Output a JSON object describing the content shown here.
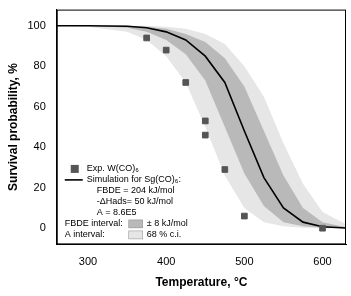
{
  "chart_data": {
    "type": "line",
    "x_label": "Temperature, °C",
    "y_label": "Survival probability, %",
    "xlim": [
      260,
      630
    ],
    "xticks": [
      300,
      400,
      500,
      600
    ],
    "ylim": [
      -8,
      108
    ],
    "yticks": [
      0,
      20,
      40,
      60,
      80,
      100
    ],
    "grid": false,
    "legend": "lower left",
    "annotations": [
      "FBDE = 204 kJ/mol",
      "-ΔHads= 50 kJ/mol",
      "A = 8.6E5"
    ],
    "series": [
      {
        "name": "Exp. W(CO)₆",
        "type": "scatter",
        "marker": "square",
        "color": "#555555",
        "x": [
          375,
          400,
          425,
          450,
          450,
          475,
          500,
          600
        ],
        "values": [
          94,
          88,
          72,
          53,
          46,
          29,
          6,
          0
        ]
      },
      {
        "name": "Simulation for Sg(CO)₆:",
        "type": "line",
        "line_style": "solid",
        "color": "#000000",
        "x": [
          260,
          300,
          350,
          375,
          400,
          425,
          450,
          475,
          500,
          525,
          550,
          575,
          600,
          630
        ],
        "values": [
          100,
          100,
          99.8,
          99,
          97,
          93,
          85,
          72,
          48,
          25,
          10,
          3,
          0.7,
          0.1
        ]
      },
      {
        "name": "FBDE interval:",
        "label_detail": "± 8 kJ/mol",
        "type": "band",
        "color": "#b9b9b9",
        "x": [
          260,
          300,
          350,
          375,
          400,
          425,
          450,
          475,
          500,
          525,
          550,
          575,
          600,
          630
        ],
        "lower": [
          100,
          100,
          99,
          97,
          93,
          86,
          73,
          50,
          27,
          11,
          3,
          1,
          0.2,
          0
        ],
        "upper": [
          100,
          100,
          100,
          99.5,
          98.5,
          96,
          92,
          84,
          70,
          48,
          26,
          10,
          3,
          0.5
        ]
      },
      {
        "name": "A interval:",
        "label_detail": "68 % c.i.",
        "type": "band",
        "color": "#e6e6e6",
        "x": [
          260,
          300,
          350,
          375,
          400,
          425,
          450,
          475,
          500,
          525,
          550,
          575,
          600,
          630
        ],
        "lower": [
          100,
          99.5,
          97,
          93,
          85,
          72,
          50,
          26,
          10,
          3,
          1,
          0.2,
          0,
          0
        ],
        "upper": [
          100,
          100,
          100,
          100,
          99.5,
          98.5,
          96,
          91,
          80,
          65,
          42,
          22,
          8,
          2
        ]
      }
    ]
  }
}
